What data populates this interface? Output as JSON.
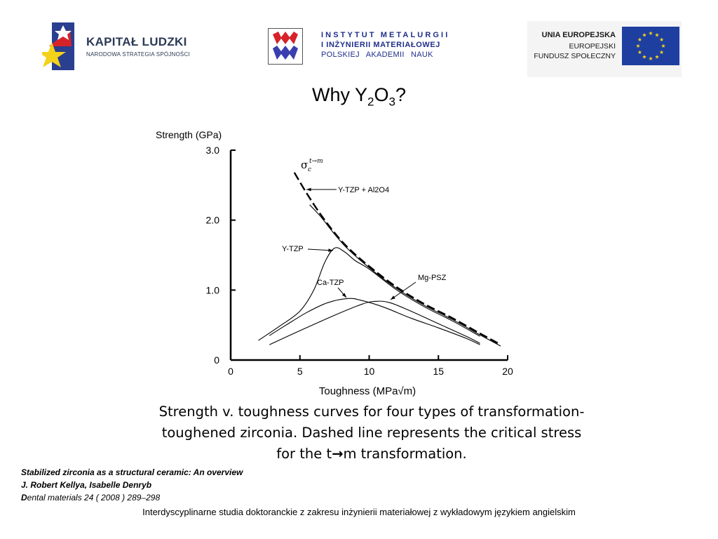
{
  "header": {
    "kapital_ludzki": {
      "name": "KAPITAŁ LUDZKI",
      "subtitle": "NARODOWA STRATEGIA SPÓJNOŚCI"
    },
    "institute": {
      "line1": "INSTYTUT METALURGII",
      "line2": "I INŻYNIERII MATERIAŁOWEJ",
      "line3": "POLSKIEJ AKADEMII NAUK"
    },
    "eu": {
      "line1": "UNIA EUROPEJSKA",
      "line2": "EUROPEJSKI",
      "line3": "FUNDUSZ SPOŁECZNY"
    }
  },
  "title": {
    "text": "Why Y",
    "sub1": "2",
    "mid": "O",
    "sub2": "3",
    "end": "?"
  },
  "chart_data": {
    "type": "line",
    "ylabel": "Strength (GPa)",
    "xlabel": "Toughness (MPa√m)",
    "xlim": [
      0,
      20
    ],
    "ylim": [
      0,
      3.0
    ],
    "xticks": [
      "0",
      "5",
      "10",
      "15",
      "20"
    ],
    "yticks": [
      "0",
      "1.0",
      "2.0",
      "3.0"
    ],
    "grid": false,
    "critical_stress_label": "σc t→m",
    "series": [
      {
        "name": "Y-TZP + Al2O4",
        "dashed": true,
        "x": [
          4.6,
          5.5,
          6.5,
          7.5,
          8.5,
          10,
          12,
          14,
          16,
          18,
          19.5
        ],
        "y": [
          2.68,
          2.38,
          2.08,
          1.82,
          1.6,
          1.34,
          1.04,
          0.8,
          0.6,
          0.38,
          0.22
        ]
      },
      {
        "name": "Y-TZP + Al2O4",
        "x": [
          5.7,
          6.5,
          7.5,
          8.5,
          10,
          12,
          14,
          16,
          18,
          19.5
        ],
        "y": [
          2.22,
          2.05,
          1.8,
          1.58,
          1.32,
          1.02,
          0.78,
          0.58,
          0.36,
          0.2
        ]
      },
      {
        "name": "Y-TZP",
        "x": [
          2,
          3.5,
          5,
          6,
          6.8,
          7.5,
          8.2,
          9,
          10,
          12,
          14,
          16,
          18
        ],
        "y": [
          0.28,
          0.48,
          0.7,
          1.0,
          1.4,
          1.6,
          1.55,
          1.42,
          1.3,
          1.0,
          0.76,
          0.56,
          0.34
        ]
      },
      {
        "name": "Ca-TZP",
        "x": [
          2.8,
          4,
          5.5,
          7,
          8.5,
          9.5,
          11,
          13,
          15,
          17,
          18
        ],
        "y": [
          0.35,
          0.5,
          0.68,
          0.82,
          0.88,
          0.85,
          0.76,
          0.6,
          0.46,
          0.31,
          0.22
        ]
      },
      {
        "name": "Mg-PSZ",
        "x": [
          2.8,
          5,
          7.5,
          9.5,
          10.5,
          11.5,
          13,
          15,
          17,
          18
        ],
        "y": [
          0.22,
          0.42,
          0.64,
          0.8,
          0.84,
          0.82,
          0.7,
          0.52,
          0.34,
          0.24
        ]
      }
    ]
  },
  "caption": {
    "line1": "Strength v. toughness curves for four types of transformation-",
    "line2": "toughened zirconia. Dashed line represents the critical stress",
    "line3_a": "for the t",
    "arrow": "→",
    "line3_b": "m transformation."
  },
  "citation": {
    "title": "Stabilized zirconia as a structural ceramic: An overview",
    "authors": "J. Robert Kellya, Isabelle Denryb",
    "journal_first": "D",
    "journal_rest": "ental materials 24 ( 2008 ) 289–298"
  },
  "footer": "Interdyscyplinarne studia doktoranckie z zakresu inżynierii materiałowej z wykładowym językiem angielskim"
}
